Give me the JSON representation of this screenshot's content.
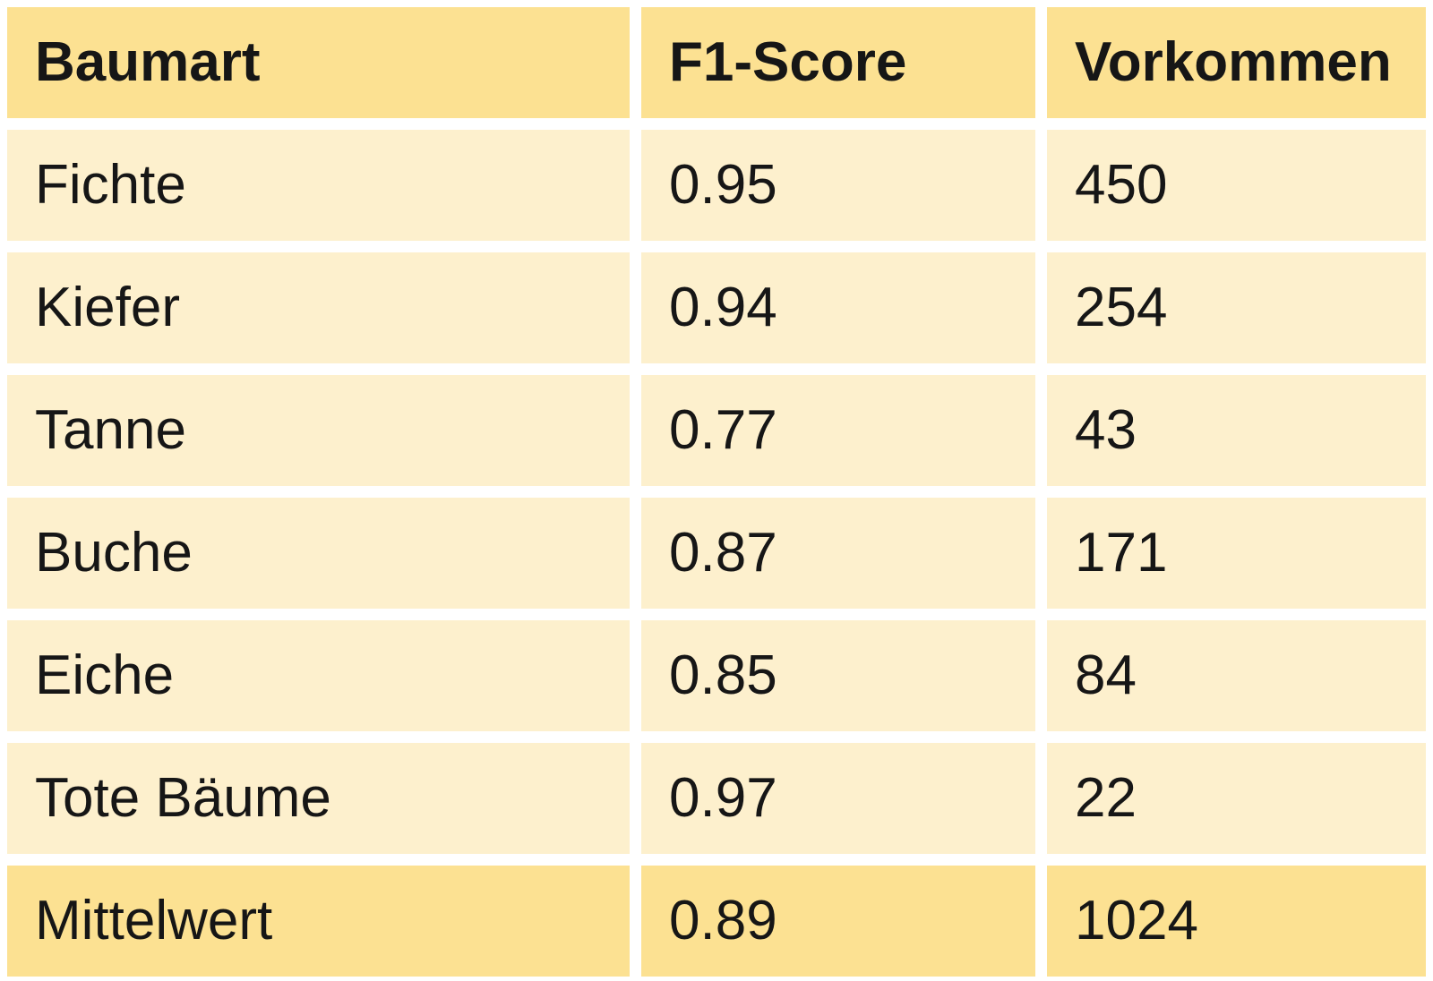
{
  "chart_data": {
    "type": "table",
    "title": "",
    "columns": [
      "Baumart",
      "F1-Score",
      "Vorkommen"
    ],
    "rows": [
      [
        "Fichte",
        "0.95",
        "450"
      ],
      [
        "Kiefer",
        "0.94",
        "254"
      ],
      [
        "Tanne",
        "0.77",
        "43"
      ],
      [
        "Buche",
        "0.87",
        "171"
      ],
      [
        "Eiche",
        "0.85",
        "84"
      ],
      [
        "Tote Bäume",
        "0.97",
        "22"
      ]
    ],
    "summary_row": [
      "Mittelwert",
      "0.89",
      "1024"
    ],
    "layout": "header row and summary row highlighted gold, data rows cream, white gutters between all cells, no grid lines"
  },
  "colors": {
    "header_background": "#fce192",
    "row_background": "#fdf0cd",
    "gutter": "#ffffff",
    "text": "#161616"
  }
}
